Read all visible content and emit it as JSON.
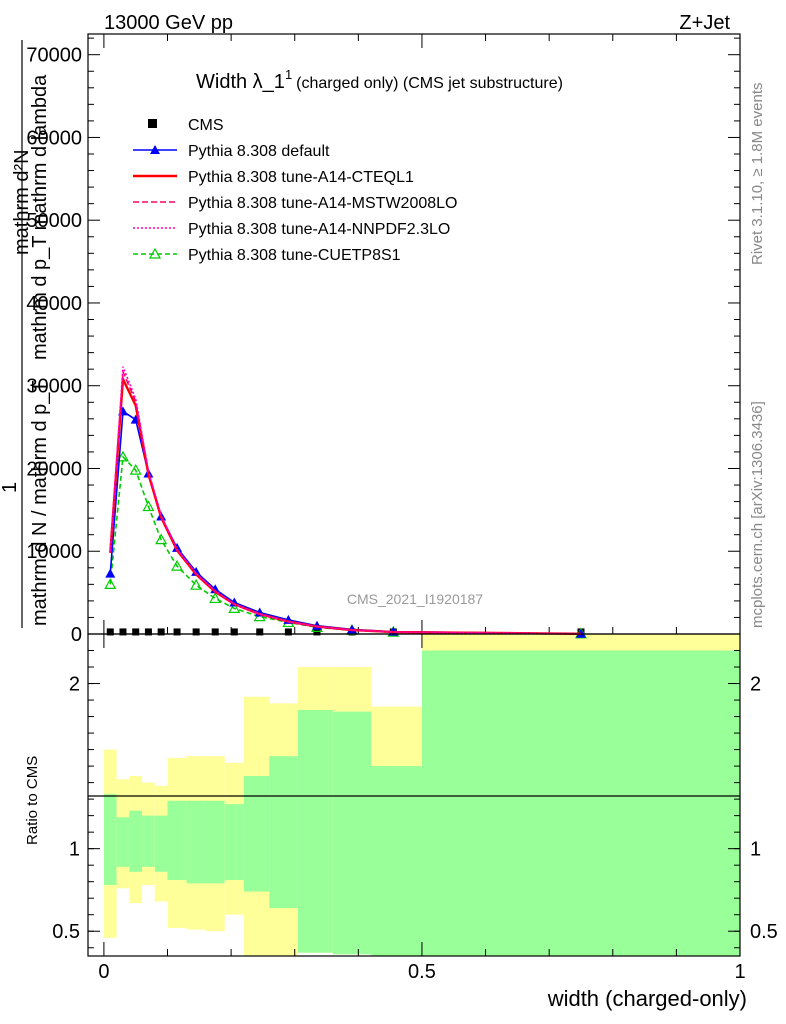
{
  "header": {
    "energy_label": "13000 GeV pp",
    "process_label": "Z+Jet"
  },
  "chart_data": {
    "type": "line",
    "title_main": "Width λ_1",
    "title_sup": "1",
    "title_rest": "(charged only) (CMS jet substructure)",
    "ylabel_top": "mathrm d²N",
    "ylabel_top2": "mathrm d p_T mathrm d lambda",
    "ylabel_numerator": "1",
    "ylabel_denominator": "mathrm d N / mathrm d p_T",
    "ratio_ylabel": "Ratio to CMS",
    "xlabel": "width (charged-only)",
    "analysis_label": "CMS_2021_I1920187",
    "side_label_rivet": "Rivet 3.1.10, ≥ 1.8M events",
    "side_label_mcplots": "mcplots.cern.ch [arXiv:1306.3436]",
    "xlim": [
      -0.025,
      1.0
    ],
    "ylim": [
      0,
      72500
    ],
    "ratio_ylim": [
      0.35,
      2.3
    ],
    "x_ticks": [
      {
        "value": 0,
        "label": "0"
      },
      {
        "value": 0.5,
        "label": "0.5"
      },
      {
        "value": 1,
        "label": "1"
      }
    ],
    "y_ticks": [
      {
        "value": 0,
        "label": "0"
      },
      {
        "value": 10000,
        "label": "10000"
      },
      {
        "value": 20000,
        "label": "20000"
      },
      {
        "value": 30000,
        "label": "30000"
      },
      {
        "value": 40000,
        "label": "40000"
      },
      {
        "value": 50000,
        "label": "50000"
      },
      {
        "value": 60000,
        "label": "60000"
      },
      {
        "value": 70000,
        "label": "70000"
      }
    ],
    "ratio_ticks": [
      {
        "value": 0.5,
        "label": "0.5"
      },
      {
        "value": 1,
        "label": "1"
      },
      {
        "value": 2,
        "label": "2"
      }
    ],
    "cms": {
      "name": "CMS",
      "x": [
        0.01,
        0.03,
        0.05,
        0.07,
        0.09,
        0.115,
        0.145,
        0.175,
        0.205,
        0.245,
        0.29,
        0.335,
        0.39,
        0.455,
        0.75
      ],
      "y": [
        250,
        250,
        250,
        250,
        250,
        250,
        250,
        250,
        250,
        250,
        250,
        250,
        250,
        250,
        250
      ]
    },
    "series": [
      {
        "name": "Pythia 8.308 default",
        "color": "#0000ff",
        "dash": "",
        "marker": "triangle-filled",
        "x": [
          0.01,
          0.03,
          0.05,
          0.07,
          0.09,
          0.115,
          0.145,
          0.175,
          0.205,
          0.245,
          0.29,
          0.335,
          0.39,
          0.455,
          0.75
        ],
        "y": [
          7300,
          26900,
          25900,
          19400,
          14200,
          10400,
          7500,
          5400,
          3800,
          2600,
          1700,
          1000,
          550,
          280,
          30
        ]
      },
      {
        "name": "Pythia 8.308 tune-A14-CTEQL1",
        "color": "#ff0000",
        "dash": "",
        "marker": "none",
        "x": [
          0.01,
          0.03,
          0.05,
          0.07,
          0.09,
          0.115,
          0.145,
          0.175,
          0.205,
          0.245,
          0.29,
          0.335,
          0.39,
          0.455,
          0.75
        ],
        "y": [
          9800,
          30800,
          27600,
          19300,
          14100,
          10100,
          7200,
          5100,
          3600,
          2400,
          1500,
          900,
          480,
          240,
          25
        ]
      },
      {
        "name": "Pythia 8.308 tune-A14-MSTW2008LO",
        "color": "#ff0066",
        "dash": "6,3",
        "marker": "none",
        "x": [
          0.01,
          0.03,
          0.05,
          0.07,
          0.09,
          0.115,
          0.145,
          0.175,
          0.205,
          0.245,
          0.29,
          0.335,
          0.39,
          0.455,
          0.75
        ],
        "y": [
          9900,
          31700,
          28100,
          19600,
          14300,
          10200,
          7300,
          5200,
          3600,
          2400,
          1500,
          900,
          480,
          240,
          25
        ]
      },
      {
        "name": "Pythia 8.308 tune-A14-NNPDF2.3LO",
        "color": "#ff00cc",
        "dash": "2,2",
        "marker": "none",
        "x": [
          0.01,
          0.03,
          0.05,
          0.07,
          0.09,
          0.115,
          0.145,
          0.175,
          0.205,
          0.245,
          0.29,
          0.335,
          0.39,
          0.455,
          0.75
        ],
        "y": [
          10000,
          32300,
          28400,
          19700,
          14300,
          10200,
          7300,
          5200,
          3600,
          2400,
          1500,
          900,
          480,
          240,
          25
        ]
      },
      {
        "name": "Pythia 8.308 tune-CUETP8S1",
        "color": "#00cc00",
        "dash": "5,3",
        "marker": "triangle-open",
        "x": [
          0.01,
          0.03,
          0.05,
          0.07,
          0.09,
          0.115,
          0.145,
          0.175,
          0.205,
          0.245,
          0.29,
          0.335,
          0.39,
          0.455,
          0.75
        ],
        "y": [
          6000,
          21400,
          19800,
          15400,
          11400,
          8200,
          5900,
          4300,
          3100,
          2100,
          1400,
          800,
          450,
          230,
          25
        ]
      }
    ],
    "ratio_bands": {
      "inner_color": "#99ff99",
      "outer_color": "#ffff99",
      "bins": [
        {
          "x0": 0.0,
          "x1": 0.02,
          "inner": [
            0.78,
            1.33
          ],
          "outer": [
            0.46,
            1.6
          ]
        },
        {
          "x0": 0.02,
          "x1": 0.04,
          "inner": [
            0.89,
            1.19
          ],
          "outer": [
            0.76,
            1.42
          ]
        },
        {
          "x0": 0.04,
          "x1": 0.06,
          "inner": [
            0.86,
            1.23
          ],
          "outer": [
            0.67,
            1.44
          ]
        },
        {
          "x0": 0.06,
          "x1": 0.08,
          "inner": [
            0.89,
            1.2
          ],
          "outer": [
            0.78,
            1.4
          ]
        },
        {
          "x0": 0.08,
          "x1": 0.1,
          "inner": [
            0.86,
            1.2
          ],
          "outer": [
            0.68,
            1.38
          ]
        },
        {
          "x0": 0.1,
          "x1": 0.13,
          "inner": [
            0.81,
            1.29
          ],
          "outer": [
            0.52,
            1.55
          ]
        },
        {
          "x0": 0.13,
          "x1": 0.16,
          "inner": [
            0.79,
            1.29
          ],
          "outer": [
            0.51,
            1.56
          ]
        },
        {
          "x0": 0.16,
          "x1": 0.19,
          "inner": [
            0.79,
            1.29
          ],
          "outer": [
            0.5,
            1.56
          ]
        },
        {
          "x0": 0.19,
          "x1": 0.22,
          "inner": [
            0.81,
            1.27
          ],
          "outer": [
            0.6,
            1.52
          ]
        },
        {
          "x0": 0.22,
          "x1": 0.26,
          "inner": [
            0.74,
            1.44
          ],
          "outer": [
            0.35,
            1.92
          ]
        },
        {
          "x0": 0.26,
          "x1": 0.305,
          "inner": [
            0.64,
            1.56
          ],
          "outer": [
            0.35,
            1.88
          ]
        },
        {
          "x0": 0.305,
          "x1": 0.36,
          "inner": [
            0.37,
            1.84
          ],
          "outer": [
            0.37,
            2.1
          ]
        },
        {
          "x0": 0.36,
          "x1": 0.42,
          "inner": [
            0.36,
            1.83
          ],
          "outer": [
            0.36,
            2.1
          ]
        },
        {
          "x0": 0.42,
          "x1": 0.5,
          "inner": [
            0.35,
            1.5
          ],
          "outer": [
            0.35,
            1.86
          ]
        },
        {
          "x0": 0.5,
          "x1": 1.0,
          "inner": [
            0.35,
            2.2
          ],
          "outer": [
            0.35,
            2.3
          ]
        }
      ]
    }
  }
}
